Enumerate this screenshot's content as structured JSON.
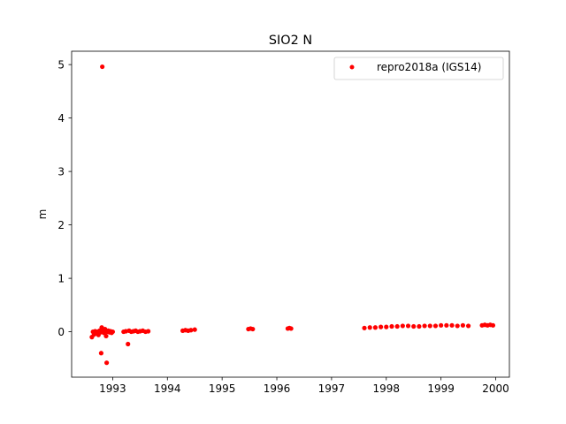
{
  "chart_data": {
    "type": "scatter",
    "title": "SIO2 N",
    "xlabel": "",
    "ylabel": "m",
    "xlim": [
      1992.25,
      2000.25
    ],
    "ylim": [
      -0.85,
      5.25
    ],
    "xticks": [
      1993,
      1994,
      1995,
      1996,
      1997,
      1998,
      1999,
      2000
    ],
    "yticks": [
      0,
      1,
      2,
      3,
      4,
      5
    ],
    "grid": false,
    "legend_position": "upper right",
    "series": [
      {
        "name": "repro2018a (IGS14)",
        "color": "#ff0000",
        "marker": "circle",
        "points": [
          [
            1992.62,
            -0.1
          ],
          [
            1992.64,
            0.0
          ],
          [
            1992.66,
            -0.05
          ],
          [
            1992.68,
            0.01
          ],
          [
            1992.7,
            -0.03
          ],
          [
            1992.72,
            0.0
          ],
          [
            1992.74,
            -0.06
          ],
          [
            1992.76,
            0.02
          ],
          [
            1992.78,
            -0.01
          ],
          [
            1992.79,
            -0.4
          ],
          [
            1992.8,
            0.08
          ],
          [
            1992.81,
            4.96
          ],
          [
            1992.82,
            0.03
          ],
          [
            1992.84,
            -0.02
          ],
          [
            1992.86,
            0.05
          ],
          [
            1992.88,
            -0.08
          ],
          [
            1992.89,
            -0.58
          ],
          [
            1992.9,
            0.0
          ],
          [
            1992.92,
            0.02
          ],
          [
            1992.94,
            -0.01
          ],
          [
            1992.96,
            0.01
          ],
          [
            1992.98,
            -0.02
          ],
          [
            1993.0,
            0.0
          ],
          [
            1993.2,
            0.0
          ],
          [
            1993.24,
            0.01
          ],
          [
            1993.28,
            -0.23
          ],
          [
            1993.3,
            0.02
          ],
          [
            1993.34,
            0.0
          ],
          [
            1993.38,
            0.01
          ],
          [
            1993.42,
            0.02
          ],
          [
            1993.46,
            0.0
          ],
          [
            1993.5,
            0.01
          ],
          [
            1993.55,
            0.02
          ],
          [
            1993.6,
            0.0
          ],
          [
            1993.65,
            0.01
          ],
          [
            1994.28,
            0.02
          ],
          [
            1994.33,
            0.03
          ],
          [
            1994.38,
            0.02
          ],
          [
            1994.43,
            0.03
          ],
          [
            1994.5,
            0.04
          ],
          [
            1995.48,
            0.05
          ],
          [
            1995.52,
            0.06
          ],
          [
            1995.56,
            0.05
          ],
          [
            1996.2,
            0.06
          ],
          [
            1996.23,
            0.07
          ],
          [
            1996.26,
            0.06
          ],
          [
            1997.6,
            0.07
          ],
          [
            1997.7,
            0.08
          ],
          [
            1997.8,
            0.08
          ],
          [
            1997.9,
            0.09
          ],
          [
            1998.0,
            0.09
          ],
          [
            1998.1,
            0.1
          ],
          [
            1998.2,
            0.1
          ],
          [
            1998.3,
            0.11
          ],
          [
            1998.4,
            0.11
          ],
          [
            1998.5,
            0.1
          ],
          [
            1998.6,
            0.1
          ],
          [
            1998.7,
            0.11
          ],
          [
            1998.8,
            0.11
          ],
          [
            1998.9,
            0.11
          ],
          [
            1999.0,
            0.12
          ],
          [
            1999.1,
            0.12
          ],
          [
            1999.2,
            0.12
          ],
          [
            1999.3,
            0.11
          ],
          [
            1999.4,
            0.12
          ],
          [
            1999.5,
            0.11
          ],
          [
            1999.75,
            0.12
          ],
          [
            1999.8,
            0.13
          ],
          [
            1999.85,
            0.12
          ],
          [
            1999.9,
            0.13
          ],
          [
            1999.95,
            0.12
          ]
        ]
      }
    ]
  }
}
